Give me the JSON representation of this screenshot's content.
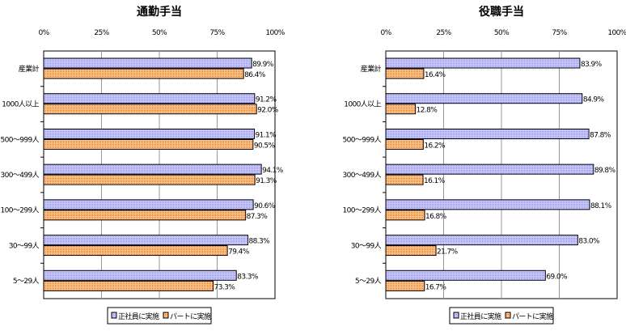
{
  "colors": {
    "regular": "#9999ff",
    "part": "#ff6600"
  },
  "chart_data": [
    {
      "type": "bar",
      "orientation": "horizontal",
      "title": "通勤手当",
      "categories": [
        "産業計",
        "1000人以上",
        "500～999人",
        "300～499人",
        "100～299人",
        "30～99人",
        "5～29人"
      ],
      "xlim": [
        0,
        100
      ],
      "ticks": [
        "0%",
        "25%",
        "50%",
        "75%",
        "100%"
      ],
      "grid": true,
      "legend": "bottom",
      "series": [
        {
          "name": "正社員に実施",
          "values": [
            89.9,
            91.2,
            91.1,
            94.1,
            90.6,
            88.3,
            83.3
          ],
          "labels": [
            "89.9%",
            "91.2%",
            "91.1%",
            "94.1%",
            "90.6%",
            "88.3%",
            "83.3%"
          ]
        },
        {
          "name": "パートに実施",
          "values": [
            86.4,
            92.0,
            90.5,
            91.3,
            87.3,
            79.4,
            73.3
          ],
          "labels": [
            "86.4%",
            "92.0%",
            "90.5%",
            "91.3%",
            "87.3%",
            "79.4%",
            "73.3%"
          ]
        }
      ]
    },
    {
      "type": "bar",
      "orientation": "horizontal",
      "title": "役職手当",
      "categories": [
        "産業計",
        "1000人以上",
        "500～999人",
        "300～499人",
        "100～299人",
        "30～99人",
        "5～29人"
      ],
      "xlim": [
        0,
        100
      ],
      "ticks": [
        "0%",
        "25%",
        "50%",
        "75%",
        "100%"
      ],
      "grid": true,
      "legend": "bottom",
      "series": [
        {
          "name": "正社員に実施",
          "values": [
            83.9,
            84.9,
            87.8,
            89.8,
            88.1,
            83.0,
            69.0
          ],
          "labels": [
            "83.9%",
            "84.9%",
            "87.8%",
            "89.8%",
            "88.1%",
            "83.0%",
            "69.0%"
          ]
        },
        {
          "name": "パートに実施",
          "values": [
            16.4,
            12.8,
            16.2,
            16.1,
            16.8,
            21.7,
            16.7
          ],
          "labels": [
            "16.4%",
            "12.8%",
            "16.2%",
            "16.1%",
            "16.8%",
            "21.7%",
            "16.7%"
          ]
        }
      ]
    }
  ]
}
